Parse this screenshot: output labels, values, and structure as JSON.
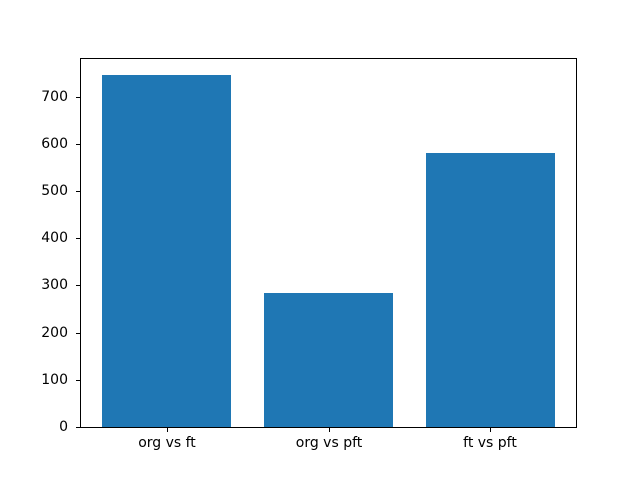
{
  "chart_data": {
    "type": "bar",
    "title": "",
    "xlabel": "",
    "ylabel": "",
    "categories": [
      "org vs ft",
      "org vs pft",
      "ft vs pft"
    ],
    "values": [
      746,
      285,
      580
    ],
    "ylim": [
      0,
      780
    ],
    "yticks": [
      0,
      100,
      200,
      300,
      400,
      500,
      600,
      700
    ],
    "bar_color": "#1f77b4",
    "axis_color": "#000000",
    "background_color": "#ffffff",
    "bar_width_fraction": 0.8,
    "grid": false,
    "legend": "none"
  }
}
